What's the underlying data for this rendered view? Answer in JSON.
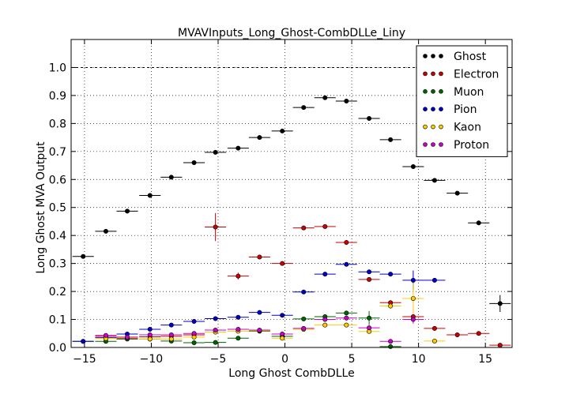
{
  "chart_data": {
    "type": "scatter",
    "title": "MVAVInputs_Long_Ghost-CombDLLe_Liny",
    "xlabel": "Long Ghost CombDLLe",
    "ylabel": "Long Ghost MVA Output",
    "xlim": [
      -16,
      17
    ],
    "ylim": [
      0.0,
      1.1
    ],
    "xticks": [
      -15,
      -10,
      -5,
      0,
      5,
      10,
      15
    ],
    "yticks": [
      0.0,
      0.1,
      0.2,
      0.3,
      0.4,
      0.5,
      0.6,
      0.7,
      0.8,
      0.9,
      1.0
    ],
    "xtick_labels": [
      "−15",
      "−10",
      "−5",
      "0",
      "5",
      "10",
      "15"
    ],
    "ytick_labels": [
      "0.0",
      "0.1",
      "0.2",
      "0.3",
      "0.4",
      "0.5",
      "0.6",
      "0.7",
      "0.8",
      "0.9",
      "1.0"
    ],
    "grid": true,
    "reference_line_y": 1.0,
    "legend_position": "top-right",
    "series": [
      {
        "name": "Ghost",
        "color": "#000000",
        "points": [
          {
            "x": -15.1,
            "y": 0.325,
            "xerr": 0.8,
            "yerr": 0.005
          },
          {
            "x": -13.4,
            "y": 0.415,
            "xerr": 0.8,
            "yerr": 0.005
          },
          {
            "x": -11.8,
            "y": 0.487,
            "xerr": 0.8,
            "yerr": 0.005
          },
          {
            "x": -10.1,
            "y": 0.543,
            "xerr": 0.8,
            "yerr": 0.005
          },
          {
            "x": -8.5,
            "y": 0.608,
            "xerr": 0.8,
            "yerr": 0.005
          },
          {
            "x": -6.8,
            "y": 0.66,
            "xerr": 0.8,
            "yerr": 0.005
          },
          {
            "x": -5.2,
            "y": 0.697,
            "xerr": 0.8,
            "yerr": 0.005
          },
          {
            "x": -3.5,
            "y": 0.712,
            "xerr": 0.8,
            "yerr": 0.005
          },
          {
            "x": -1.9,
            "y": 0.75,
            "xerr": 0.8,
            "yerr": 0.005
          },
          {
            "x": -0.2,
            "y": 0.773,
            "xerr": 0.8,
            "yerr": 0.005
          },
          {
            "x": 1.4,
            "y": 0.857,
            "xerr": 0.8,
            "yerr": 0.005
          },
          {
            "x": 3.0,
            "y": 0.892,
            "xerr": 0.8,
            "yerr": 0.005
          },
          {
            "x": 4.6,
            "y": 0.88,
            "xerr": 0.8,
            "yerr": 0.005
          },
          {
            "x": 6.3,
            "y": 0.818,
            "xerr": 0.8,
            "yerr": 0.005
          },
          {
            "x": 7.9,
            "y": 0.742,
            "xerr": 0.8,
            "yerr": 0.005
          },
          {
            "x": 9.6,
            "y": 0.646,
            "xerr": 0.8,
            "yerr": 0.005
          },
          {
            "x": 11.2,
            "y": 0.597,
            "xerr": 0.8,
            "yerr": 0.005
          },
          {
            "x": 12.9,
            "y": 0.551,
            "xerr": 0.8,
            "yerr": 0.005
          },
          {
            "x": 14.5,
            "y": 0.445,
            "xerr": 0.8,
            "yerr": 0.008
          },
          {
            "x": 16.1,
            "y": 0.157,
            "xerr": 0.8,
            "yerr": 0.03
          }
        ]
      },
      {
        "name": "Electron",
        "color": "#cc0000",
        "points": [
          {
            "x": -13.4,
            "y": 0.04,
            "xerr": 0.8,
            "yerr": 0.003
          },
          {
            "x": -11.8,
            "y": 0.033,
            "xerr": 0.8,
            "yerr": 0.003
          },
          {
            "x": -10.1,
            "y": 0.038,
            "xerr": 0.8,
            "yerr": 0.003
          },
          {
            "x": -8.5,
            "y": 0.04,
            "xerr": 0.8,
            "yerr": 0.003
          },
          {
            "x": -6.8,
            "y": 0.045,
            "xerr": 0.8,
            "yerr": 0.003
          },
          {
            "x": -5.2,
            "y": 0.43,
            "xerr": 0.8,
            "yerr": 0.05
          },
          {
            "x": -3.5,
            "y": 0.255,
            "xerr": 0.8,
            "yerr": 0.012
          },
          {
            "x": -1.9,
            "y": 0.323,
            "xerr": 0.8,
            "yerr": 0.005
          },
          {
            "x": -0.2,
            "y": 0.3,
            "xerr": 0.8,
            "yerr": 0.005
          },
          {
            "x": 1.4,
            "y": 0.427,
            "xerr": 0.8,
            "yerr": 0.005
          },
          {
            "x": 3.0,
            "y": 0.432,
            "xerr": 0.8,
            "yerr": 0.005
          },
          {
            "x": 4.6,
            "y": 0.375,
            "xerr": 0.8,
            "yerr": 0.005
          },
          {
            "x": 6.3,
            "y": 0.243,
            "xerr": 0.8,
            "yerr": 0.005
          },
          {
            "x": 7.9,
            "y": 0.16,
            "xerr": 0.8,
            "yerr": 0.006
          },
          {
            "x": 9.6,
            "y": 0.11,
            "xerr": 0.8,
            "yerr": 0.008
          },
          {
            "x": 11.2,
            "y": 0.068,
            "xerr": 0.8,
            "yerr": 0.005
          },
          {
            "x": 12.9,
            "y": 0.045,
            "xerr": 0.8,
            "yerr": 0.004
          },
          {
            "x": 14.5,
            "y": 0.05,
            "xerr": 0.8,
            "yerr": 0.004
          },
          {
            "x": 16.1,
            "y": 0.008,
            "xerr": 0.8,
            "yerr": 0.003
          }
        ]
      },
      {
        "name": "Muon",
        "color": "#006600",
        "points": [
          {
            "x": -15.1,
            "y": 0.022,
            "xerr": 0.8,
            "yerr": 0.003
          },
          {
            "x": -13.4,
            "y": 0.022,
            "xerr": 0.8,
            "yerr": 0.003
          },
          {
            "x": -11.8,
            "y": 0.03,
            "xerr": 0.8,
            "yerr": 0.003
          },
          {
            "x": -10.1,
            "y": 0.03,
            "xerr": 0.8,
            "yerr": 0.003
          },
          {
            "x": -8.5,
            "y": 0.023,
            "xerr": 0.8,
            "yerr": 0.003
          },
          {
            "x": -6.8,
            "y": 0.017,
            "xerr": 0.8,
            "yerr": 0.003
          },
          {
            "x": -5.2,
            "y": 0.018,
            "xerr": 0.8,
            "yerr": 0.003
          },
          {
            "x": -3.5,
            "y": 0.033,
            "xerr": 0.8,
            "yerr": 0.004
          },
          {
            "x": -1.9,
            "y": 0.058,
            "xerr": 0.8,
            "yerr": 0.004
          },
          {
            "x": -0.2,
            "y": 0.04,
            "xerr": 0.8,
            "yerr": 0.004
          },
          {
            "x": 1.4,
            "y": 0.102,
            "xerr": 0.8,
            "yerr": 0.005
          },
          {
            "x": 3.0,
            "y": 0.11,
            "xerr": 0.8,
            "yerr": 0.006
          },
          {
            "x": 4.6,
            "y": 0.123,
            "xerr": 0.8,
            "yerr": 0.008
          },
          {
            "x": 6.3,
            "y": 0.105,
            "xerr": 0.8,
            "yerr": 0.025
          },
          {
            "x": 7.9,
            "y": 0.003,
            "xerr": 0.8,
            "yerr": 0.003
          }
        ]
      },
      {
        "name": "Pion",
        "color": "#0000cc",
        "points": [
          {
            "x": -15.1,
            "y": 0.022,
            "xerr": 0.8,
            "yerr": 0.002
          },
          {
            "x": -13.4,
            "y": 0.035,
            "xerr": 0.8,
            "yerr": 0.002
          },
          {
            "x": -11.8,
            "y": 0.048,
            "xerr": 0.8,
            "yerr": 0.002
          },
          {
            "x": -10.1,
            "y": 0.065,
            "xerr": 0.8,
            "yerr": 0.002
          },
          {
            "x": -8.5,
            "y": 0.08,
            "xerr": 0.8,
            "yerr": 0.002
          },
          {
            "x": -6.8,
            "y": 0.093,
            "xerr": 0.8,
            "yerr": 0.002
          },
          {
            "x": -5.2,
            "y": 0.103,
            "xerr": 0.8,
            "yerr": 0.002
          },
          {
            "x": -3.5,
            "y": 0.108,
            "xerr": 0.8,
            "yerr": 0.002
          },
          {
            "x": -1.9,
            "y": 0.125,
            "xerr": 0.8,
            "yerr": 0.002
          },
          {
            "x": -0.2,
            "y": 0.115,
            "xerr": 0.8,
            "yerr": 0.002
          },
          {
            "x": 1.4,
            "y": 0.198,
            "xerr": 0.8,
            "yerr": 0.003
          },
          {
            "x": 3.0,
            "y": 0.262,
            "xerr": 0.8,
            "yerr": 0.003
          },
          {
            "x": 4.6,
            "y": 0.297,
            "xerr": 0.8,
            "yerr": 0.003
          },
          {
            "x": 6.3,
            "y": 0.27,
            "xerr": 0.8,
            "yerr": 0.003
          },
          {
            "x": 7.9,
            "y": 0.262,
            "xerr": 0.8,
            "yerr": 0.004
          },
          {
            "x": 9.6,
            "y": 0.24,
            "xerr": 0.8,
            "yerr": 0.035
          },
          {
            "x": 11.2,
            "y": 0.24,
            "xerr": 0.8,
            "yerr": 0.008
          }
        ]
      },
      {
        "name": "Kaon",
        "color": "#ffcc00",
        "points": [
          {
            "x": -13.4,
            "y": 0.032,
            "xerr": 0.8,
            "yerr": 0.003
          },
          {
            "x": -11.8,
            "y": 0.035,
            "xerr": 0.8,
            "yerr": 0.003
          },
          {
            "x": -10.1,
            "y": 0.03,
            "xerr": 0.8,
            "yerr": 0.003
          },
          {
            "x": -8.5,
            "y": 0.03,
            "xerr": 0.8,
            "yerr": 0.003
          },
          {
            "x": -6.8,
            "y": 0.037,
            "xerr": 0.8,
            "yerr": 0.003
          },
          {
            "x": -5.2,
            "y": 0.055,
            "xerr": 0.8,
            "yerr": 0.003
          },
          {
            "x": -3.5,
            "y": 0.058,
            "xerr": 0.8,
            "yerr": 0.003
          },
          {
            "x": -1.9,
            "y": 0.06,
            "xerr": 0.8,
            "yerr": 0.003
          },
          {
            "x": -0.2,
            "y": 0.033,
            "xerr": 0.8,
            "yerr": 0.003
          },
          {
            "x": 1.4,
            "y": 0.065,
            "xerr": 0.8,
            "yerr": 0.003
          },
          {
            "x": 3.0,
            "y": 0.08,
            "xerr": 0.8,
            "yerr": 0.003
          },
          {
            "x": 4.6,
            "y": 0.08,
            "xerr": 0.8,
            "yerr": 0.003
          },
          {
            "x": 6.3,
            "y": 0.057,
            "xerr": 0.8,
            "yerr": 0.003
          },
          {
            "x": 7.9,
            "y": 0.148,
            "xerr": 0.8,
            "yerr": 0.01
          },
          {
            "x": 9.6,
            "y": 0.175,
            "xerr": 0.8,
            "yerr": 0.055
          },
          {
            "x": 11.2,
            "y": 0.023,
            "xerr": 0.8,
            "yerr": 0.004
          }
        ]
      },
      {
        "name": "Proton",
        "color": "#cc00cc",
        "points": [
          {
            "x": -13.4,
            "y": 0.043,
            "xerr": 0.8,
            "yerr": 0.003
          },
          {
            "x": -11.8,
            "y": 0.037,
            "xerr": 0.8,
            "yerr": 0.003
          },
          {
            "x": -10.1,
            "y": 0.045,
            "xerr": 0.8,
            "yerr": 0.003
          },
          {
            "x": -8.5,
            "y": 0.045,
            "xerr": 0.8,
            "yerr": 0.003
          },
          {
            "x": -6.8,
            "y": 0.05,
            "xerr": 0.8,
            "yerr": 0.003
          },
          {
            "x": -5.2,
            "y": 0.062,
            "xerr": 0.8,
            "yerr": 0.003
          },
          {
            "x": -3.5,
            "y": 0.065,
            "xerr": 0.8,
            "yerr": 0.003
          },
          {
            "x": -1.9,
            "y": 0.062,
            "xerr": 0.8,
            "yerr": 0.003
          },
          {
            "x": -0.2,
            "y": 0.048,
            "xerr": 0.8,
            "yerr": 0.003
          },
          {
            "x": 1.4,
            "y": 0.068,
            "xerr": 0.8,
            "yerr": 0.003
          },
          {
            "x": 3.0,
            "y": 0.1,
            "xerr": 0.8,
            "yerr": 0.004
          },
          {
            "x": 4.6,
            "y": 0.105,
            "xerr": 0.8,
            "yerr": 0.004
          },
          {
            "x": 6.3,
            "y": 0.07,
            "xerr": 0.8,
            "yerr": 0.004
          },
          {
            "x": 7.9,
            "y": 0.022,
            "xerr": 0.8,
            "yerr": 0.004
          },
          {
            "x": 9.6,
            "y": 0.1,
            "xerr": 0.8,
            "yerr": 0.015
          }
        ]
      }
    ]
  }
}
